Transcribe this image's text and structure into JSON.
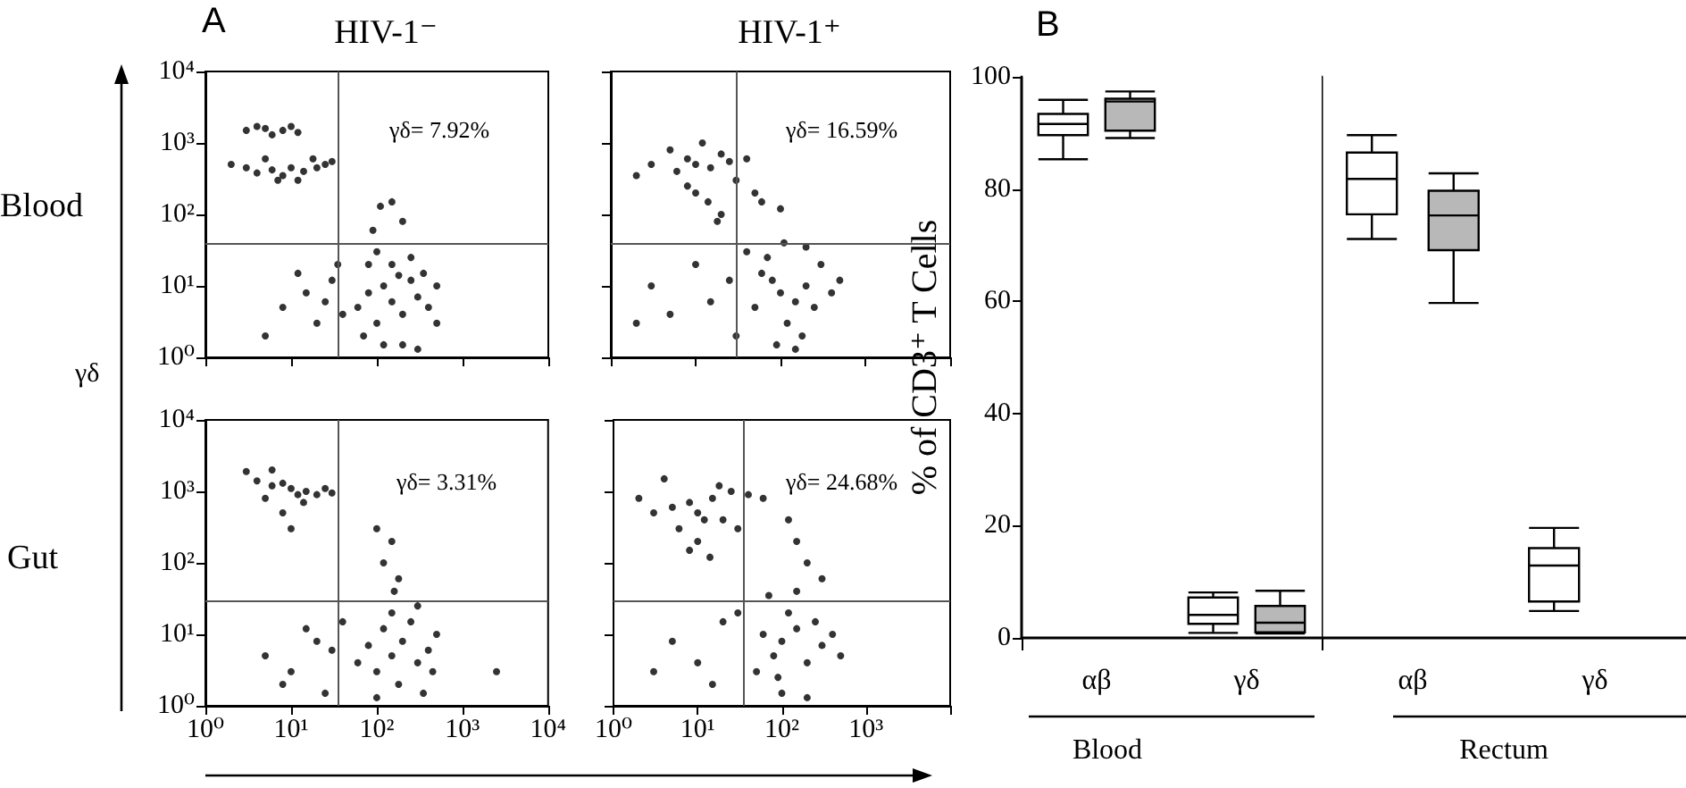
{
  "chart_data": [
    {
      "type": "scatter",
      "title": "HIV-1⁻",
      "ylabel": "γδ",
      "annotations": [
        "A",
        "Blood",
        "γδ= 7.92%"
      ],
      "log": "xy",
      "xlim": [
        1,
        10000
      ],
      "ylim": [
        1,
        10000
      ],
      "xticks": [
        {
          "value": 1,
          "label": null
        },
        {
          "value": 10,
          "label": null
        },
        {
          "value": 100,
          "label": null
        },
        {
          "value": 1000,
          "label": null
        },
        {
          "value": 10000,
          "label": null
        }
      ],
      "yticks": [
        {
          "value": 1,
          "label": "10⁰"
        },
        {
          "value": 10,
          "label": "10¹"
        },
        {
          "value": 100,
          "label": "10²"
        },
        {
          "value": 1000,
          "label": "10³"
        },
        {
          "value": 10000,
          "label": "10⁴"
        }
      ],
      "tick_labels": "y",
      "marker": "circle",
      "color": "#000000",
      "ref_lines": [
        {
          "axis": "x",
          "value": 35
        },
        {
          "axis": "y",
          "value": 40
        }
      ],
      "x": [
        3,
        5,
        8,
        12,
        6,
        4,
        10,
        3,
        4,
        6,
        8,
        10,
        14,
        20,
        25,
        30,
        5,
        2,
        7,
        12,
        18,
        60,
        80,
        100,
        120,
        150,
        200,
        250,
        300,
        400,
        500,
        80,
        150,
        250,
        350,
        70,
        120,
        200,
        300,
        500,
        180,
        100,
        8,
        15,
        20,
        30,
        25,
        12,
        40,
        5,
        35,
        110,
        150,
        90,
        200
      ],
      "values": [
        1500,
        1600,
        1500,
        1400,
        1300,
        1700,
        1700,
        450,
        380,
        420,
        350,
        450,
        400,
        450,
        500,
        550,
        600,
        500,
        300,
        300,
        600,
        5,
        8,
        3,
        10,
        6,
        4,
        12,
        7,
        5,
        3,
        20,
        20,
        25,
        15,
        2,
        1.5,
        1.5,
        1.3,
        10,
        14,
        30,
        5,
        8,
        3,
        12,
        6,
        15,
        4,
        2,
        20,
        130,
        150,
        60,
        80
      ]
    },
    {
      "type": "scatter",
      "title": "HIV-1⁺",
      "annotations": [
        "γδ= 16.59%"
      ],
      "log": "xy",
      "xlim": [
        1,
        10000
      ],
      "ylim": [
        1,
        10000
      ],
      "xticks": [
        {
          "value": 1,
          "label": null
        },
        {
          "value": 10,
          "label": null
        },
        {
          "value": 100,
          "label": null
        },
        {
          "value": 1000,
          "label": null
        },
        {
          "value": 10000,
          "label": null
        }
      ],
      "yticks": [
        {
          "value": 1,
          "label": null
        },
        {
          "value": 10,
          "label": null
        },
        {
          "value": 100,
          "label": null
        },
        {
          "value": 1000,
          "label": null
        },
        {
          "value": 10000,
          "label": null
        }
      ],
      "tick_labels": false,
      "marker": "circle",
      "color": "#000000",
      "ref_lines": [
        {
          "axis": "x",
          "value": 30
        },
        {
          "axis": "y",
          "value": 40
        }
      ],
      "x": [
        10,
        8,
        15,
        6,
        20,
        12,
        25,
        5,
        30,
        10,
        14,
        20,
        8,
        40,
        3,
        2,
        18,
        50,
        60,
        100,
        100,
        80,
        150,
        120,
        200,
        60,
        250,
        300,
        400,
        50,
        90,
        150,
        70,
        200,
        500,
        110,
        180,
        3,
        5,
        10,
        15,
        25,
        2,
        30,
        40
      ],
      "values": [
        500,
        600,
        450,
        400,
        700,
        1000,
        550,
        800,
        300,
        200,
        150,
        100,
        250,
        600,
        500,
        350,
        80,
        200,
        150,
        120,
        8,
        12,
        6,
        3,
        10,
        15,
        5,
        20,
        8,
        5,
        1.5,
        1.3,
        25,
        35,
        12,
        40,
        2,
        10,
        4,
        20,
        6,
        12,
        3,
        2,
        30
      ]
    },
    {
      "type": "scatter",
      "annotations": [
        "Gut",
        "γδ= 3.31%"
      ],
      "log": "xy",
      "xlim": [
        1,
        10000
      ],
      "ylim": [
        1,
        10000
      ],
      "xticks": [
        {
          "value": 1,
          "label": "10⁰"
        },
        {
          "value": 10,
          "label": "10¹"
        },
        {
          "value": 100,
          "label": "10²"
        },
        {
          "value": 1000,
          "label": "10³"
        },
        {
          "value": 10000,
          "label": "10⁴"
        }
      ],
      "yticks": [
        {
          "value": 1,
          "label": "10⁰"
        },
        {
          "value": 10,
          "label": "10¹"
        },
        {
          "value": 100,
          "label": "10²"
        },
        {
          "value": 1000,
          "label": "10³"
        },
        {
          "value": 10000,
          "label": "10⁴"
        }
      ],
      "marker": "circle",
      "color": "#000000",
      "ref_lines": [
        {
          "axis": "x",
          "value": 35
        },
        {
          "axis": "y",
          "value": 30
        }
      ],
      "x": [
        4,
        6,
        8,
        10,
        5,
        12,
        15,
        20,
        25,
        30,
        8,
        10,
        3,
        6,
        14,
        150,
        200,
        100,
        300,
        250,
        120,
        400,
        80,
        180,
        350,
        500,
        60,
        150,
        300,
        100,
        450,
        5,
        10,
        15,
        20,
        30,
        8,
        40,
        25,
        100,
        150,
        120,
        180,
        160,
        2500
      ],
      "values": [
        1400,
        1200,
        1300,
        1100,
        800,
        900,
        1000,
        900,
        1100,
        950,
        500,
        300,
        1900,
        2000,
        700,
        5,
        8,
        3,
        4,
        15,
        12,
        6,
        7,
        2,
        1.5,
        10,
        4,
        20,
        25,
        1.3,
        3,
        5,
        3,
        12,
        8,
        6,
        2,
        15,
        1.5,
        300,
        200,
        100,
        60,
        40,
        3
      ]
    },
    {
      "type": "scatter",
      "annotations": [
        "γδ= 24.68%"
      ],
      "log": "xy",
      "xlim": [
        1,
        10000
      ],
      "ylim": [
        1,
        10000
      ],
      "xticks": [
        {
          "value": 1,
          "label": "10⁰"
        },
        {
          "value": 10,
          "label": "10¹"
        },
        {
          "value": 100,
          "label": "10²"
        },
        {
          "value": 1000,
          "label": "10³"
        },
        {
          "value": 10000,
          "label": null
        }
      ],
      "yticks": [
        {
          "value": 1,
          "label": null
        },
        {
          "value": 10,
          "label": null
        },
        {
          "value": 100,
          "label": null
        },
        {
          "value": 1000,
          "label": null
        },
        {
          "value": 10000,
          "label": null
        }
      ],
      "tick_labels": "x",
      "marker": "circle",
      "color": "#000000",
      "ref_lines": [
        {
          "axis": "x",
          "value": 35
        },
        {
          "axis": "y",
          "value": 30
        }
      ],
      "x": [
        10,
        8,
        12,
        6,
        15,
        5,
        20,
        3,
        2,
        10,
        14,
        8,
        25,
        30,
        4,
        18,
        40,
        60,
        100,
        80,
        150,
        200,
        60,
        120,
        300,
        50,
        250,
        400,
        100,
        200,
        70,
        150,
        90,
        500,
        5,
        10,
        20,
        3,
        15,
        30,
        150,
        200,
        120,
        300
      ],
      "values": [
        500,
        700,
        400,
        300,
        800,
        600,
        400,
        500,
        800,
        200,
        120,
        150,
        1000,
        300,
        1500,
        1200,
        900,
        800,
        8,
        5,
        12,
        4,
        10,
        20,
        7,
        3,
        15,
        10,
        1.5,
        1.3,
        35,
        40,
        2.5,
        5,
        8,
        4,
        15,
        3,
        2,
        20,
        200,
        100,
        400,
        60
      ]
    },
    {
      "type": "box",
      "ylabel": "% of CD3⁺ T Cells",
      "xlabel": "Blood",
      "annotations": [
        "B"
      ],
      "categories": [
        "αβ",
        "γδ"
      ],
      "ylim": [
        0,
        100
      ],
      "yticks": [
        0,
        20,
        40,
        60,
        80,
        100
      ],
      "series": [
        {
          "color": "#ffffff",
          "boxes": [
            {
              "low": 85.3,
              "q1": 89.6,
              "median": 91.6,
              "q3": 93.4,
              "high": 95.9
            },
            {
              "low": 0.9,
              "q1": 2.5,
              "median": 4.1,
              "q3": 7.2,
              "high": 8.1
            }
          ]
        },
        {
          "color": "#b8b8b8",
          "boxes": [
            {
              "low": 89.1,
              "q1": 90.4,
              "median": 95.6,
              "q3": 96.1,
              "high": 97.4
            },
            {
              "low": 0.8,
              "q1": 1.0,
              "median": 2.7,
              "q3": 5.7,
              "high": 8.4
            }
          ]
        }
      ]
    },
    {
      "type": "box",
      "xlabel": "Rectum",
      "categories": [
        "αβ",
        "γδ"
      ],
      "ylim": [
        0,
        100
      ],
      "yticks": [
        0,
        20,
        40,
        60,
        80,
        100
      ],
      "tick_labels": "x",
      "series": [
        {
          "color": "#ffffff",
          "boxes": [
            {
              "low": 71.1,
              "q1": 75.5,
              "median": 81.8,
              "q3": 86.5,
              "high": 89.6
            },
            {
              "low": 4.8,
              "q1": 6.5,
              "median": 12.9,
              "q3": 16.0,
              "high": 19.6
            }
          ]
        },
        {
          "color": "#b8b8b8",
          "boxes": [
            {
              "low": 59.7,
              "q1": 69.1,
              "median": 75.3,
              "q3": 79.7,
              "high": 82.8
            },
            null
          ]
        }
      ]
    }
  ]
}
